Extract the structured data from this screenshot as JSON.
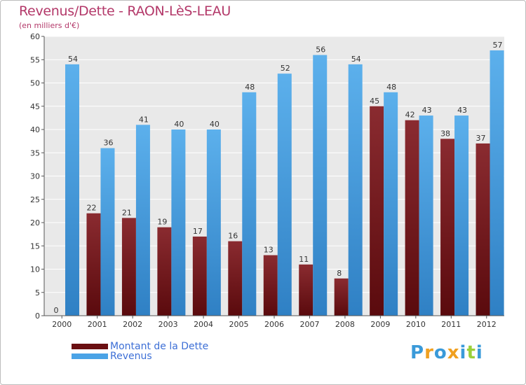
{
  "title": "Revenus/Dette - RAON-LèS-LEAU",
  "subtitle": "(en milliers d'€)",
  "colors": {
    "dette": "#7a1c22",
    "revenus": "#4aa3e6",
    "title": "#b33869",
    "legend_text": "#3d6fd6"
  },
  "legend": [
    {
      "label": "Montant de la Dette",
      "color": "#6a0f12"
    },
    {
      "label": "Revenus",
      "color": "#4aa3e6"
    }
  ],
  "logo": {
    "letters": [
      {
        "char": "P",
        "color": "#3a9ad9"
      },
      {
        "char": "r",
        "color": "#f0a020"
      },
      {
        "char": "o",
        "color": "#3a9ad9"
      },
      {
        "char": "x",
        "color": "#f0a020"
      },
      {
        "char": "i",
        "color": "#3a9ad9"
      },
      {
        "char": "t",
        "color": "#9ad03a"
      },
      {
        "char": "i",
        "color": "#3a9ad9"
      }
    ]
  },
  "chart_data": {
    "type": "bar",
    "categories": [
      "2000",
      "2001",
      "2002",
      "2003",
      "2004",
      "2005",
      "2006",
      "2007",
      "2008",
      "2009",
      "2010",
      "2011",
      "2012"
    ],
    "series": [
      {
        "name": "Montant de la Dette",
        "values": [
          0,
          22,
          21,
          19,
          17,
          16,
          13,
          11,
          8,
          45,
          42,
          38,
          37
        ]
      },
      {
        "name": "Revenus",
        "values": [
          54,
          36,
          41,
          40,
          40,
          48,
          52,
          56,
          54,
          48,
          43,
          43,
          57
        ]
      }
    ],
    "title": "Revenus/Dette - RAON-LèS-LEAU",
    "ylabel": "(en milliers d'€)",
    "ylim": [
      0,
      60
    ],
    "yticks": [
      0,
      5,
      10,
      15,
      20,
      25,
      30,
      35,
      40,
      45,
      50,
      55,
      60
    ],
    "grid": true,
    "legend_position": "bottom-left"
  }
}
